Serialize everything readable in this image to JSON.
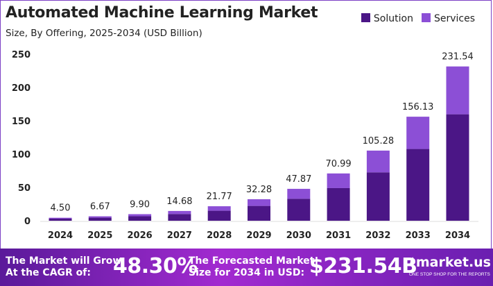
{
  "chart_data": {
    "type": "bar",
    "stacked": true,
    "title": "Automated Machine Learning Market",
    "subtitle": "Size, By Offering, 2025-2034 (USD Billion)",
    "categories": [
      "2024",
      "2025",
      "2026",
      "2027",
      "2028",
      "2029",
      "2030",
      "2031",
      "2032",
      "2033",
      "2034"
    ],
    "totals": [
      "4.50",
      "6.67",
      "9.90",
      "14.68",
      "21.77",
      "32.28",
      "47.87",
      "70.99",
      "105.28",
      "156.13",
      "231.54"
    ],
    "series": [
      {
        "name": "Solution",
        "color": "#4b1686",
        "values": [
          3.1,
          4.6,
          6.83,
          10.13,
          15.02,
          22.27,
          33.03,
          48.98,
          72.64,
          107.73,
          159.76
        ]
      },
      {
        "name": "Services",
        "color": "#8c4fd6",
        "values": [
          1.4,
          2.07,
          3.07,
          4.55,
          6.75,
          10.01,
          14.84,
          22.01,
          32.64,
          48.4,
          71.78
        ]
      }
    ],
    "yticks": [
      "0",
      "50",
      "100",
      "150",
      "200",
      "250"
    ],
    "ylim": [
      0,
      250
    ],
    "grid": false,
    "legend": "top-right"
  },
  "footer": {
    "cagr_text_1": "The Market will Grow",
    "cagr_text_2": "At the CAGR of:",
    "cagr_value": "48.30%",
    "forecast_text_1": "The Forecasted Market",
    "forecast_text_2": "Size for 2034 in USD:",
    "forecast_value": "$231.54B",
    "logo_name": "market.us",
    "logo_tagline": "ONE STOP SHOP FOR THE REPORTS"
  }
}
